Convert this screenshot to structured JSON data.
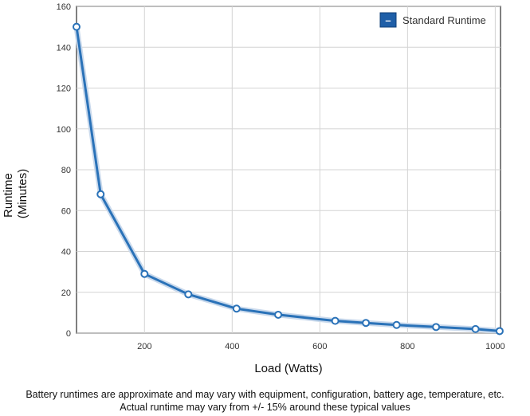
{
  "chart_data": {
    "type": "line",
    "xlabel": "Load (Watts)",
    "ylabel_lines": [
      "Runtime",
      "(Minutes)"
    ],
    "xlim": [
      45,
      1012
    ],
    "ylim": [
      0,
      160
    ],
    "x_ticks": [
      200,
      400,
      600,
      800,
      1000
    ],
    "y_ticks": [
      0,
      20,
      40,
      60,
      80,
      100,
      120,
      140,
      160
    ],
    "grid": true,
    "legend_position": "top-right",
    "series": [
      {
        "name": "Standard Runtime",
        "color": "#2a72b8",
        "x": [
          45,
          100,
          200,
          300,
          410,
          505,
          635,
          705,
          775,
          865,
          955,
          1010
        ],
        "y": [
          150,
          68,
          29,
          19,
          12,
          9,
          6,
          5,
          4,
          3,
          2,
          1
        ]
      }
    ]
  },
  "legend": {
    "toggle_symbol": "–"
  },
  "footnote": {
    "line1": "Battery runtimes are approximate and may vary with equipment, configuration, battery age, temperature, etc.",
    "line2": "Actual runtime may vary from +/- 15% around these typical values"
  }
}
